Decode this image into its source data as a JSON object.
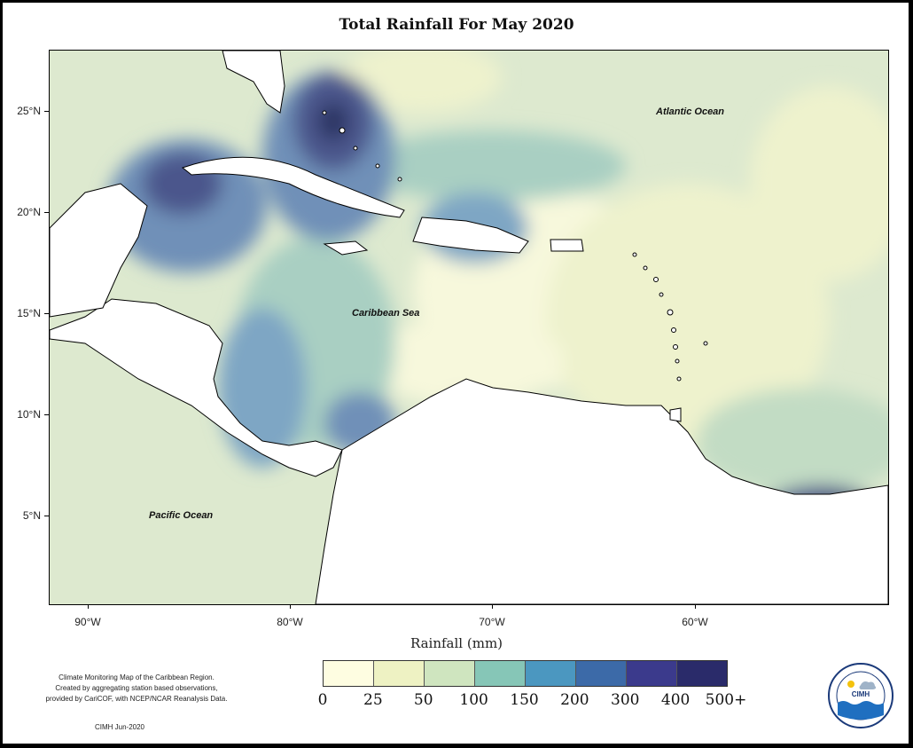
{
  "title": "Total Rainfall For May 2020",
  "map_labels": {
    "atlantic": "Atlantic Ocean",
    "caribbean": "Caribbean Sea",
    "pacific": "Pacific Ocean"
  },
  "y_axis": [
    "25°N",
    "20°N",
    "15°N",
    "10°N",
    "5°N"
  ],
  "x_axis": [
    "90°W",
    "80°W",
    "70°W",
    "60°W"
  ],
  "x_axis_label": "Rainfall (mm)",
  "legend": {
    "ticks": [
      "0",
      "25",
      "50",
      "100",
      "150",
      "200",
      "300",
      "400",
      "500+"
    ],
    "colors": [
      "#fefde1",
      "#eef2c3",
      "#cfe5bf",
      "#86c6b7",
      "#4b97c0",
      "#3c6aa8",
      "#3b3a8c",
      "#2a2b6a",
      "#13204e"
    ]
  },
  "caption": {
    "line1": "Climate Monitoring Map of the Caribbean Region.",
    "line2": "Created by aggregating station based observations,",
    "line3": "provided by CariCOF, with NCEP/NCAR Reanalysis Data.",
    "credit": "CIMH Jun-2020"
  },
  "logo": {
    "text": "CIMH"
  }
}
